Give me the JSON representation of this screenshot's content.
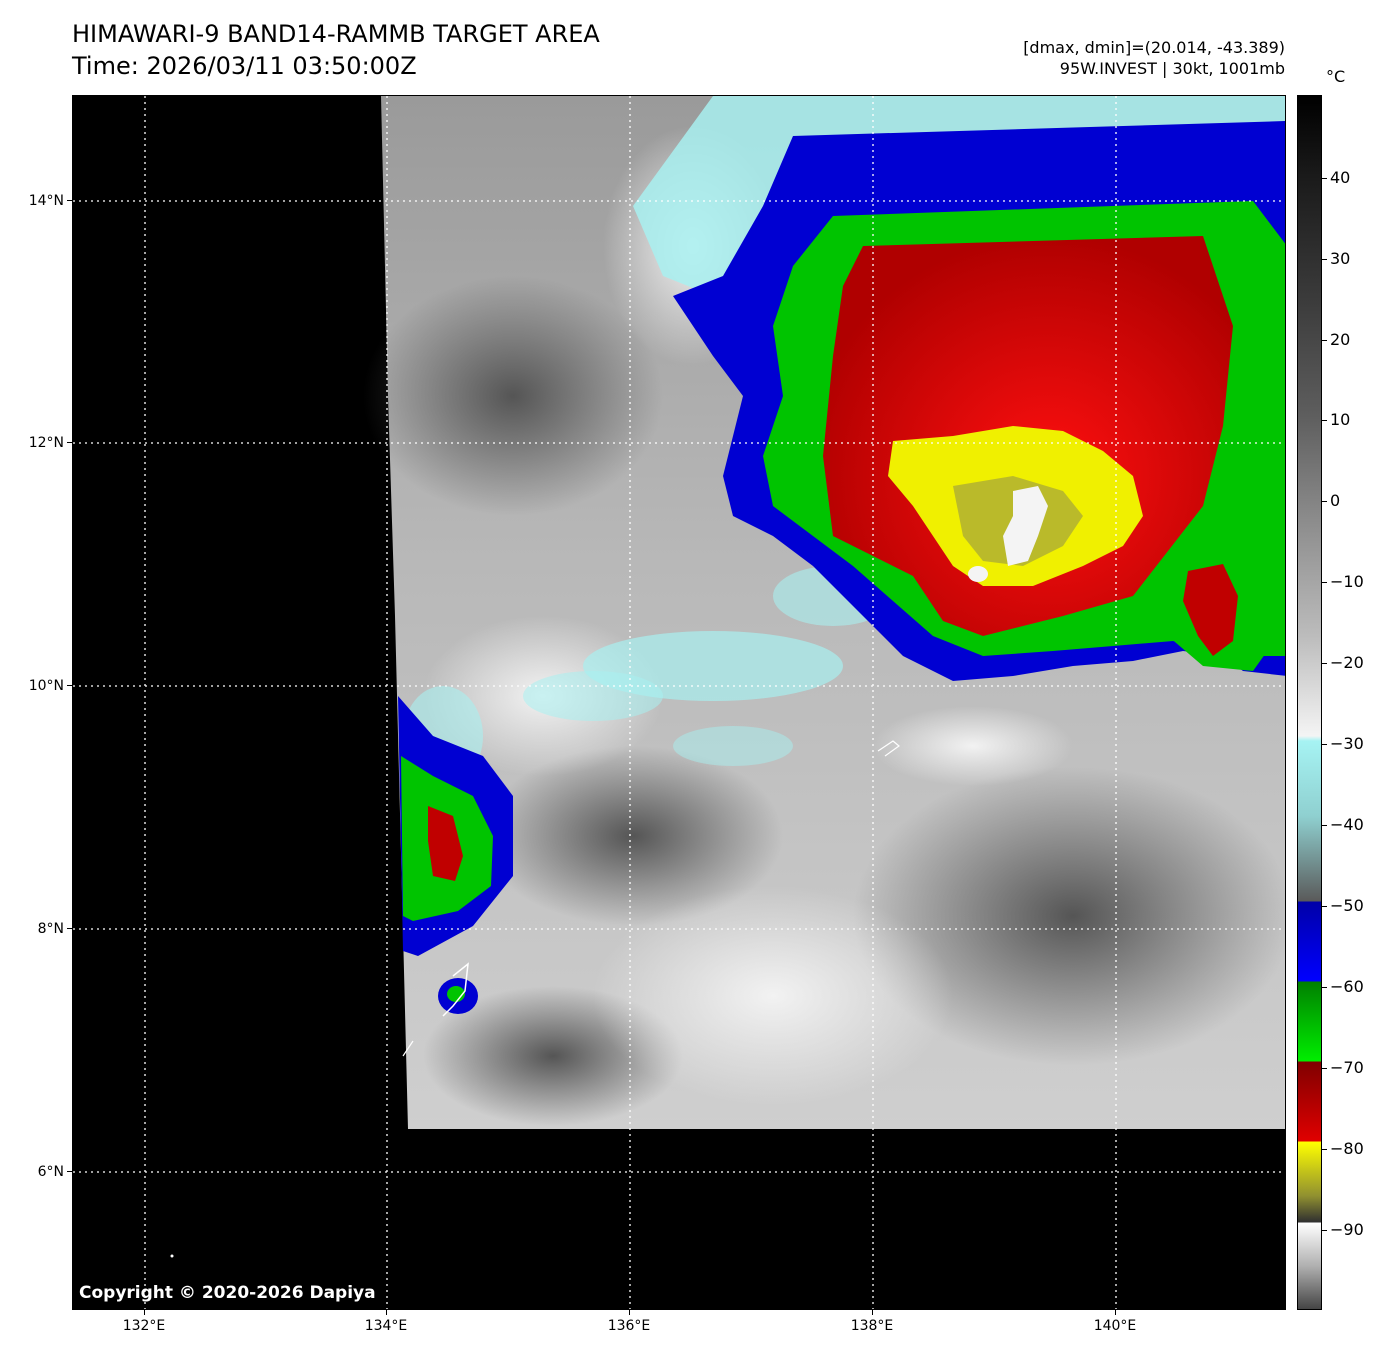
{
  "header": {
    "title_line1": "HIMAWARI-9 BAND14-RAMMB TARGET AREA",
    "title_line2": "Time: 2026/03/11 03:50:00Z",
    "range_text": "[dmax, dmin]=(20.014, -43.389)",
    "storm_text": "95W.INVEST | 30kt, 1001mb"
  },
  "map": {
    "lat_ticks": [
      "14°N",
      "12°N",
      "10°N",
      "8°N",
      "6°N"
    ],
    "lon_ticks": [
      "132°E",
      "134°E",
      "136°E",
      "138°E",
      "140°E"
    ],
    "copyright": "Copyright © 2020-2026 Dapiya"
  },
  "colorbar": {
    "unit": "°C",
    "labels": [
      "40",
      "30",
      "20",
      "10",
      "0",
      "−10",
      "−20",
      "−30",
      "−40",
      "−50",
      "−60",
      "−70",
      "−80",
      "−90"
    ],
    "colors": {
      "white_gray": "#e8e8e8",
      "cyan": "#9ef0f0",
      "blue": "#0000d0",
      "green": "#00c000",
      "red": "#c00000",
      "yellow": "#f0f000",
      "black": "#000000"
    }
  }
}
